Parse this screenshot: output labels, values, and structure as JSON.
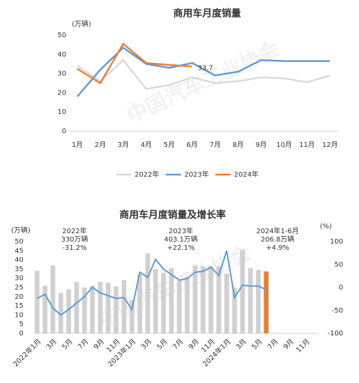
{
  "chart_data": [
    {
      "type": "line",
      "title": "商用车月度销量",
      "y_unit": "(万辆)",
      "categories": [
        "1月",
        "2月",
        "3月",
        "4月",
        "5月",
        "6月",
        "7月",
        "8月",
        "9月",
        "10月",
        "11月",
        "12月"
      ],
      "ylim": [
        0,
        50
      ],
      "yticks": [
        0,
        10,
        20,
        30,
        40,
        50
      ],
      "grid": false,
      "legend": "bottom",
      "watermark": "中国汽车工业协会",
      "series": [
        {
          "name": "2022年",
          "color": "#d9d9d9",
          "values": [
            34,
            26,
            37,
            22,
            24,
            28,
            25,
            26,
            28,
            27.5,
            25.5,
            29
          ]
        },
        {
          "name": "2023年",
          "color": "#5b9bd5",
          "values": [
            18,
            32,
            43.5,
            35,
            33,
            35.5,
            29,
            31,
            37,
            36.5,
            36.5,
            36.5
          ]
        },
        {
          "name": "2024年",
          "color": "#ed7d31",
          "values": [
            32.5,
            25,
            45.5,
            35.5,
            34.5,
            33.7,
            null,
            null,
            null,
            null,
            null,
            null
          ],
          "value_labels": [
            null,
            null,
            null,
            null,
            null,
            "33.7",
            null,
            null,
            null,
            null,
            null,
            null
          ]
        }
      ]
    },
    {
      "type": "combo",
      "title": "商用车月度销量及增长率",
      "y_unit": "(万辆)",
      "y2_unit": "(%)",
      "categories": [
        "2022年1月",
        null,
        "3月",
        null,
        "5月",
        null,
        "7月",
        null,
        "9月",
        null,
        "11月",
        null,
        "2023年1月",
        null,
        "3月",
        null,
        "5月",
        null,
        "7月",
        null,
        "9月",
        null,
        "11月",
        null,
        "2024年1月",
        null,
        "3月",
        null,
        "5月",
        null,
        "7月",
        null,
        "9月",
        null,
        "11月",
        null
      ],
      "ylim": [
        0,
        50
      ],
      "yticks": [
        0,
        5,
        10,
        15,
        20,
        25,
        30,
        35,
        40,
        45,
        50
      ],
      "y2lim": [
        -100,
        100
      ],
      "y2ticks": [
        -100,
        -50,
        0,
        50,
        100
      ],
      "grid": false,
      "watermark": "中国汽车工业协会",
      "annotations": [
        {
          "lines": [
            "2022年",
            "330万辆",
            "-31.2%"
          ],
          "colors": [
            "#333333",
            "#333333",
            "#e03030"
          ]
        },
        {
          "lines": [
            "2023年",
            "403.1万辆",
            "+22.1%"
          ],
          "colors": [
            "#333333",
            "#333333",
            "#333333"
          ]
        },
        {
          "lines": [
            "2024年1-6月",
            "206.8万辆",
            "+4.9%"
          ],
          "colors": [
            "#333333",
            "#333333",
            "#333333"
          ]
        }
      ],
      "series": [
        {
          "type": "bar",
          "color": "#d0d0d0",
          "values": [
            34,
            26,
            37,
            22,
            24,
            28,
            25,
            26,
            28,
            27.5,
            25.5,
            29,
            18,
            32,
            43.5,
            35,
            33,
            35.5,
            29,
            31,
            37,
            36.5,
            36.5,
            36.5,
            32.5,
            25,
            45.5,
            35.5,
            34.5,
            null,
            null,
            null,
            null,
            null,
            null,
            null
          ]
        },
        {
          "type": "bar",
          "color": "#ed7d31",
          "values": [
            null,
            null,
            null,
            null,
            null,
            null,
            null,
            null,
            null,
            null,
            null,
            null,
            null,
            null,
            null,
            null,
            null,
            null,
            null,
            null,
            null,
            null,
            null,
            null,
            null,
            null,
            null,
            null,
            null,
            33.7,
            null,
            null,
            null,
            null,
            null,
            null
          ]
        },
        {
          "type": "line",
          "axis": "y2",
          "color": "#5b9bd5",
          "values": [
            -24,
            -15,
            -45,
            -60,
            -48,
            -34,
            -20,
            0,
            -12,
            -18,
            -24,
            -22,
            -48,
            33,
            22,
            61,
            40,
            28,
            16,
            19,
            33,
            35,
            44,
            26,
            80,
            -22,
            5,
            3,
            3,
            -5,
            null,
            null,
            null,
            null,
            null,
            null
          ]
        }
      ]
    }
  ]
}
